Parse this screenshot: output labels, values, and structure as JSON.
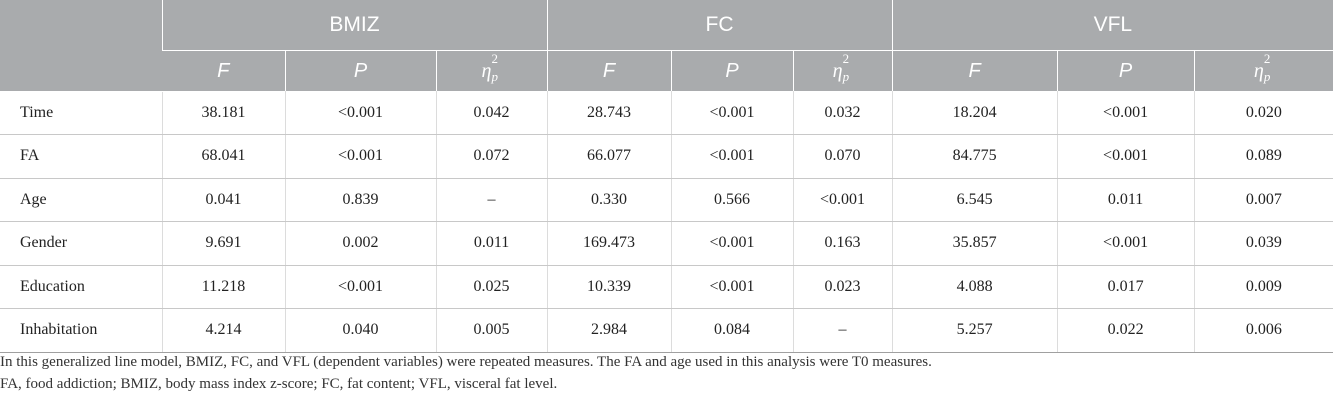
{
  "table": {
    "row_header": "",
    "groups": [
      {
        "label": "BMIZ"
      },
      {
        "label": "FC"
      },
      {
        "label": "VFL"
      }
    ],
    "stat_labels": {
      "f": "F",
      "p": "P",
      "eta_base": "η",
      "eta_sup": "2",
      "eta_sub": "p"
    },
    "rows": [
      {
        "label": "Time",
        "cells": [
          "38.181",
          "<0.001",
          "0.042",
          "28.743",
          "<0.001",
          "0.032",
          "18.204",
          "<0.001",
          "0.020"
        ]
      },
      {
        "label": "FA",
        "cells": [
          "68.041",
          "<0.001",
          "0.072",
          "66.077",
          "<0.001",
          "0.070",
          "84.775",
          "<0.001",
          "0.089"
        ]
      },
      {
        "label": "Age",
        "cells": [
          "0.041",
          "0.839",
          "–",
          "0.330",
          "0.566",
          "<0.001",
          "6.545",
          "0.011",
          "0.007"
        ]
      },
      {
        "label": "Gender",
        "cells": [
          "9.691",
          "0.002",
          "0.011",
          "169.473",
          "<0.001",
          "0.163",
          "35.857",
          "<0.001",
          "0.039"
        ]
      },
      {
        "label": "Education",
        "cells": [
          "11.218",
          "<0.001",
          "0.025",
          "10.339",
          "<0.001",
          "0.023",
          "4.088",
          "0.017",
          "0.009"
        ]
      },
      {
        "label": "Inhabitation",
        "cells": [
          "4.214",
          "0.040",
          "0.005",
          "2.984",
          "0.084",
          "–",
          "5.257",
          "0.022",
          "0.006"
        ]
      }
    ]
  },
  "notes": {
    "line1": "In this generalized line model, BMIZ, FC, and VFL (dependent variables) were repeated measures. The FA and age used in this analysis were T0 measures.",
    "line2": "FA, food addiction; BMIZ, body mass index z-score; FC, fat content; VFL, visceral fat level."
  },
  "colors": {
    "header_bg": "#a9abad",
    "header_text": "#ffffff",
    "body_text": "#222222"
  }
}
